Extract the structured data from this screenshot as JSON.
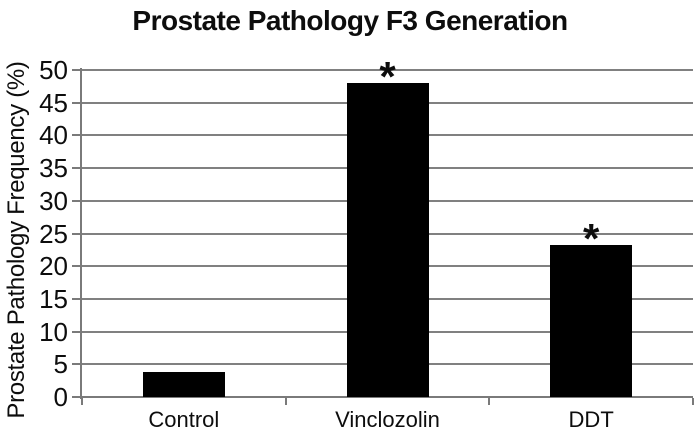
{
  "chart_data": {
    "type": "bar",
    "title": "Prostate Pathology F3 Generation",
    "ylabel": "Prostate Pathology Frequency (%)",
    "xlabel": "",
    "categories": [
      "Control",
      "Vinclozolin",
      "DDT"
    ],
    "values": [
      3.8,
      48,
      23.3
    ],
    "significance_markers": [
      "",
      "*",
      "*"
    ],
    "ylim": [
      0,
      50
    ],
    "yticks": [
      0,
      5,
      10,
      15,
      20,
      25,
      30,
      35,
      40,
      45,
      50
    ],
    "grid": true,
    "legend": "none",
    "bar_color": "#000000",
    "gridline_color": "#808080",
    "axis_color": "#7a7a7a",
    "text_color": "#0d0d0d",
    "background_color": "#ffffff"
  }
}
